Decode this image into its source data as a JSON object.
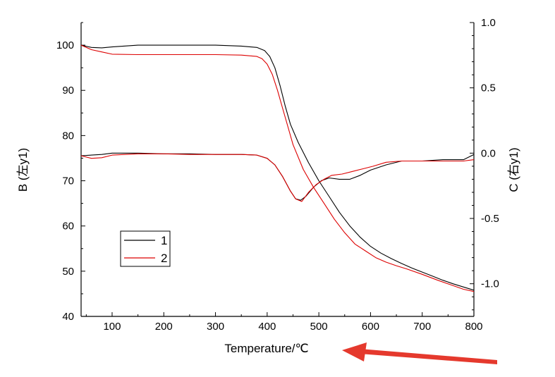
{
  "chart_data": {
    "type": "line",
    "xlabel": "Temperature/℃",
    "ylabel_left": "B (左y1)",
    "ylabel_right": "C (右y1)",
    "xlim": [
      40,
      800
    ],
    "ylim_left": [
      40,
      105
    ],
    "ylim_right": [
      -1.25,
      1.0
    ],
    "x_ticks": [
      "100",
      "200",
      "300",
      "400",
      "500",
      "600",
      "700",
      "800"
    ],
    "y_left_ticks": [
      "40",
      "50",
      "60",
      "70",
      "80",
      "90",
      "100"
    ],
    "y_right_ticks": [
      "-1.0",
      "-0.5",
      "0.0",
      "0.5",
      "1.0"
    ],
    "series": [
      {
        "name": "1",
        "color": "#000000",
        "axis": "left",
        "x": [
          40,
          60,
          80,
          100,
          150,
          200,
          250,
          300,
          350,
          380,
          395,
          405,
          415,
          425,
          435,
          445,
          460,
          480,
          500,
          520,
          540,
          560,
          580,
          600,
          620,
          640,
          660,
          680,
          700,
          720,
          740,
          760,
          780,
          800
        ],
        "values": [
          100.0,
          99.5,
          99.4,
          99.6,
          100.0,
          100.0,
          100.0,
          100.0,
          99.8,
          99.5,
          98.8,
          97.5,
          95.0,
          91.0,
          86.5,
          82.5,
          78.5,
          74.0,
          70.0,
          66.5,
          63.0,
          60.0,
          57.5,
          55.5,
          54.0,
          52.8,
          51.7,
          50.7,
          49.8,
          48.9,
          48.0,
          47.2,
          46.5,
          45.8
        ]
      },
      {
        "name": "2",
        "color": "#dd0000",
        "axis": "left",
        "x": [
          40,
          60,
          80,
          100,
          150,
          200,
          250,
          300,
          350,
          380,
          390,
          400,
          410,
          420,
          430,
          440,
          450,
          470,
          490,
          510,
          530,
          550,
          570,
          590,
          610,
          630,
          650,
          670,
          700,
          730,
          760,
          780,
          800
        ],
        "values": [
          100.0,
          99.0,
          98.5,
          98.0,
          97.9,
          97.9,
          97.9,
          97.9,
          97.8,
          97.5,
          97.0,
          95.8,
          93.5,
          90.0,
          86.0,
          82.0,
          78.0,
          72.5,
          68.5,
          65.0,
          61.5,
          58.5,
          56.0,
          54.5,
          53.0,
          52.0,
          51.2,
          50.5,
          49.3,
          48.0,
          46.8,
          46.0,
          45.5
        ]
      },
      {
        "name": "1",
        "color": "#000000",
        "axis": "right",
        "x": [
          40,
          60,
          80,
          100,
          150,
          200,
          250,
          300,
          350,
          380,
          400,
          415,
          430,
          445,
          455,
          465,
          475,
          490,
          505,
          520,
          540,
          560,
          580,
          600,
          630,
          660,
          700,
          740,
          780,
          800
        ],
        "values": [
          -0.02,
          -0.015,
          -0.01,
          0.0,
          0.0,
          -0.005,
          -0.005,
          -0.01,
          -0.01,
          -0.015,
          -0.04,
          -0.09,
          -0.18,
          -0.29,
          -0.35,
          -0.36,
          -0.33,
          -0.26,
          -0.21,
          -0.19,
          -0.2,
          -0.2,
          -0.17,
          -0.13,
          -0.09,
          -0.06,
          -0.06,
          -0.05,
          -0.05,
          -0.01
        ]
      },
      {
        "name": "2",
        "color": "#dd0000",
        "axis": "right",
        "x": [
          40,
          60,
          80,
          100,
          150,
          200,
          250,
          300,
          350,
          380,
          400,
          415,
          430,
          445,
          455,
          467,
          480,
          495,
          510,
          525,
          545,
          565,
          585,
          605,
          630,
          660,
          700,
          740,
          780,
          800
        ],
        "values": [
          -0.02,
          -0.04,
          -0.035,
          -0.015,
          -0.005,
          -0.005,
          -0.01,
          -0.01,
          -0.01,
          -0.015,
          -0.04,
          -0.09,
          -0.18,
          -0.29,
          -0.35,
          -0.37,
          -0.3,
          -0.24,
          -0.2,
          -0.17,
          -0.16,
          -0.14,
          -0.12,
          -0.1,
          -0.07,
          -0.06,
          -0.06,
          -0.06,
          -0.06,
          -0.05
        ]
      }
    ],
    "legend": {
      "position": "lower-left",
      "entries": [
        {
          "label": "1",
          "color": "#000000"
        },
        {
          "label": "2",
          "color": "#dd0000"
        }
      ]
    },
    "grid": false
  },
  "annotation": {
    "type": "arrow",
    "color": "#e5392d",
    "points_at": "xlabel"
  }
}
